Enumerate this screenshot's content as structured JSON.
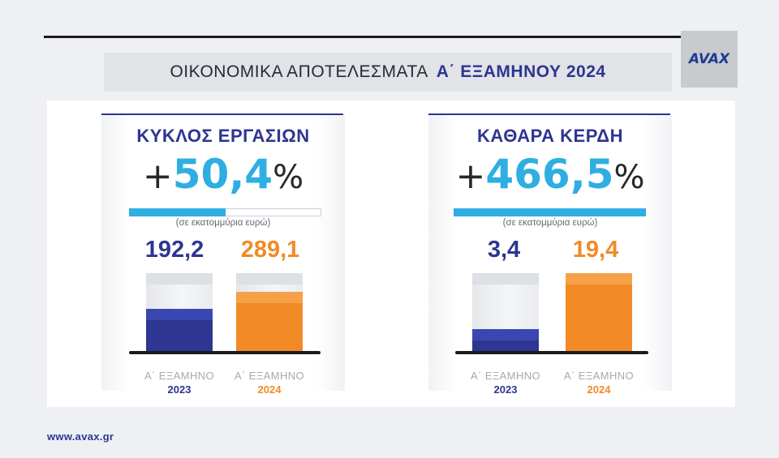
{
  "header": {
    "title_plain": "ΟΙΚΟΝΟΜΙΚΑ ΑΠΟΤΕΛΕΣΜΑΤΑ",
    "title_accent": "Α΄ ΕΞΑΜΗΝΟΥ 2024",
    "logo": "AVAX"
  },
  "footer": {
    "url": "www.avax.gr"
  },
  "colors": {
    "navy": "#2d3691",
    "orange": "#f28a26",
    "cyan": "#2eaee2"
  },
  "chart_data": [
    {
      "type": "bar",
      "title": "ΚΥΚΛΟΣ ΕΡΓΑΣΙΩΝ",
      "change_sign": "+",
      "change_value": "50,4",
      "change_unit": "%",
      "change_fraction": 0.504,
      "unit_note": "(σε εκατομμύρια ευρώ)",
      "categories": [
        "Α΄ ΕΞΑΜΗΝΟ 2023",
        "Α΄ ΕΞΑΜΗΝΟ 2024"
      ],
      "period_labels": [
        "Α΄ ΕΞΑΜΗΝΟ",
        "Α΄ ΕΞΑΜΗΝΟ"
      ],
      "years": [
        "2023",
        "2024"
      ],
      "values": [
        192.2,
        289.1
      ],
      "value_labels": [
        "192,2",
        "289,1"
      ],
      "ylim": [
        0,
        400
      ]
    },
    {
      "type": "bar",
      "title": "ΚΑΘΑΡΑ ΚΕΡΔΗ",
      "change_sign": "+",
      "change_value": "466,5",
      "change_unit": "%",
      "change_fraction": 1.0,
      "unit_note": "(σε εκατομμύρια ευρώ)",
      "categories": [
        "Α΄ ΕΞΑΜΗΝΟ 2023",
        "Α΄ ΕΞΑΜΗΝΟ 2024"
      ],
      "period_labels": [
        "Α΄ ΕΞΑΜΗΝΟ",
        "Α΄ ΕΞΑΜΗΝΟ"
      ],
      "years": [
        "2023",
        "2024"
      ],
      "values": [
        3.4,
        19.4
      ],
      "value_labels": [
        "3,4",
        "19,4"
      ],
      "ylim": [
        0,
        19.4
      ]
    }
  ]
}
